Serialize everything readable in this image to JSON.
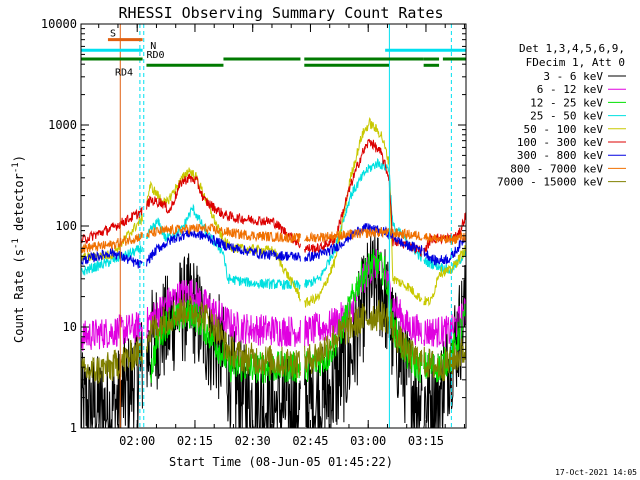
{
  "chart_data": {
    "type": "line",
    "title": "RHESSI Observing Summary Count Rates",
    "xlabel": "Start Time (08-Jun-05 01:45:22)",
    "ylabel": "Count Rate (s⁻¹ detector⁻¹)",
    "ylabel_main": "Count Rate (s",
    "ylabel_sup1": "-1",
    "ylabel_mid": " detector",
    "ylabel_sup2": "-1",
    "ylabel_end": ")",
    "yscale": "log",
    "ylim": [
      1,
      10000
    ],
    "xlim_minutes": [
      0,
      100
    ],
    "x_ticks": [
      {
        "label": "02:00",
        "min": 14.6
      },
      {
        "label": "02:15",
        "min": 29.6
      },
      {
        "label": "02:30",
        "min": 44.6
      },
      {
        "label": "02:45",
        "min": 59.6
      },
      {
        "label": "03:00",
        "min": 74.6
      },
      {
        "label": "03:15",
        "min": 89.6
      }
    ],
    "y_ticks": [
      {
        "label": "1",
        "v": 1
      },
      {
        "label": "10",
        "v": 10
      },
      {
        "label": "100",
        "v": 100
      },
      {
        "label": "1000",
        "v": 1000
      },
      {
        "label": "10000",
        "v": 10000
      }
    ],
    "legend_header": [
      "Det 1,3,4,5,6,9,",
      "FDecim 1, Att 0"
    ],
    "legend_placement": "right",
    "timestamp": "17-Oct-2021 14:05",
    "annotations": {
      "S": {
        "label": "S",
        "start_min": 7,
        "end_min": 16,
        "y": 7000,
        "color": "#e06010"
      },
      "N": {
        "label": "N",
        "start_min": 0,
        "end_min": 19,
        "y": 5500,
        "color": "#00e0f0"
      },
      "RD0": {
        "label": "RD0",
        "color": "#007a00",
        "y": 4500,
        "segments": [
          [
            0,
            16
          ],
          [
            37,
            57
          ],
          [
            58,
            89
          ],
          [
            89,
            93
          ],
          [
            94,
            100
          ]
        ]
      },
      "RD4": {
        "label": "RD4",
        "color": "#007a00",
        "y": 3900,
        "segments": [
          [
            17,
            37
          ],
          [
            58,
            80
          ],
          [
            89,
            93
          ]
        ]
      },
      "cyan_top_bars": [
        [
          0,
          16
        ],
        [
          79,
          100
        ]
      ],
      "vertical_lines": [
        {
          "min": 0,
          "color": "#00e0f0",
          "style": "solid"
        },
        {
          "min": 10.2,
          "color": "#e06010",
          "style": "solid"
        },
        {
          "min": 15.3,
          "color": "#00e0f0",
          "style": "dashed"
        },
        {
          "min": 16.3,
          "color": "#00e0f0",
          "style": "dashed"
        },
        {
          "min": 80.1,
          "color": "#00e0f0",
          "style": "solid"
        },
        {
          "min": 96.2,
          "color": "#00e0f0",
          "style": "dashed"
        }
      ]
    },
    "series": [
      {
        "name": "3 - 6 keV",
        "color": "#000000",
        "points": [
          [
            0,
            1.6
          ],
          [
            8,
            1.5
          ],
          [
            16,
            4
          ],
          [
            19,
            8
          ],
          [
            23,
            10
          ],
          [
            25,
            14
          ],
          [
            29,
            16
          ],
          [
            32,
            9
          ],
          [
            36,
            6
          ],
          [
            39,
            3
          ],
          [
            42,
            2
          ],
          [
            50,
            1.6
          ],
          [
            58,
            1.6
          ],
          [
            64,
            2
          ],
          [
            70,
            5
          ],
          [
            73,
            14
          ],
          [
            75,
            25
          ],
          [
            77,
            27
          ],
          [
            79,
            20
          ],
          [
            81,
            8
          ],
          [
            85,
            3
          ],
          [
            89,
            2
          ],
          [
            93,
            2
          ],
          [
            95,
            4
          ],
          [
            100,
            14
          ]
        ]
      },
      {
        "name": "6 - 12 keV",
        "color": "#e000e0",
        "points": [
          [
            0,
            8
          ],
          [
            8,
            9
          ],
          [
            16,
            10
          ],
          [
            20,
            14
          ],
          [
            23,
            18
          ],
          [
            28,
            23
          ],
          [
            32,
            17
          ],
          [
            37,
            12
          ],
          [
            40,
            10
          ],
          [
            45,
            9.5
          ],
          [
            58,
            9
          ],
          [
            64,
            10
          ],
          [
            70,
            14
          ],
          [
            73,
            28
          ],
          [
            75,
            38
          ],
          [
            77,
            42
          ],
          [
            79,
            35
          ],
          [
            81,
            17
          ],
          [
            85,
            10
          ],
          [
            89,
            9
          ],
          [
            93,
            9
          ],
          [
            96,
            9
          ],
          [
            100,
            14
          ]
        ]
      },
      {
        "name": "12 - 25 keV",
        "color": "#00e000",
        "points": [
          [
            18,
            3.5
          ],
          [
            20,
            8
          ],
          [
            23,
            12
          ],
          [
            25,
            12
          ],
          [
            29,
            14
          ],
          [
            32,
            10
          ],
          [
            36,
            6
          ],
          [
            39,
            4
          ],
          [
            44,
            4
          ],
          [
            56,
            4
          ],
          [
            58,
            4
          ],
          [
            64,
            5
          ],
          [
            68,
            10
          ],
          [
            72,
            28
          ],
          [
            75,
            40
          ],
          [
            77,
            42
          ],
          [
            79,
            35
          ],
          [
            81,
            10
          ],
          [
            85,
            5
          ],
          [
            88,
            4
          ],
          [
            93,
            4
          ],
          [
            96,
            5
          ],
          [
            100,
            13
          ]
        ]
      },
      {
        "name": "25 - 50 keV",
        "color": "#00e0e0",
        "points": [
          [
            0,
            35
          ],
          [
            8,
            45
          ],
          [
            16,
            60
          ],
          [
            18,
            90
          ],
          [
            20,
            110
          ],
          [
            22,
            75
          ],
          [
            26,
            90
          ],
          [
            29,
            150
          ],
          [
            31,
            110
          ],
          [
            33,
            80
          ],
          [
            37,
            55
          ],
          [
            38,
            30
          ],
          [
            45,
            27
          ],
          [
            55,
            26
          ],
          [
            58,
            26
          ],
          [
            62,
            30
          ],
          [
            66,
            60
          ],
          [
            70,
            200
          ],
          [
            74,
            350
          ],
          [
            77,
            420
          ],
          [
            79,
            390
          ],
          [
            80,
            370
          ],
          [
            81,
            100
          ],
          [
            85,
            70
          ],
          [
            89,
            45
          ],
          [
            93,
            40
          ],
          [
            96,
            36
          ],
          [
            100,
            55
          ]
        ]
      },
      {
        "name": "50 - 100 keV",
        "color": "#c8c800",
        "points": [
          [
            0,
            48
          ],
          [
            8,
            52
          ],
          [
            16,
            120
          ],
          [
            18,
            250
          ],
          [
            20,
            200
          ],
          [
            22,
            165
          ],
          [
            25,
            250
          ],
          [
            28,
            360
          ],
          [
            30,
            300
          ],
          [
            32,
            200
          ],
          [
            37,
            70
          ],
          [
            40,
            60
          ],
          [
            50,
            57
          ],
          [
            58,
            17
          ],
          [
            62,
            20
          ],
          [
            66,
            45
          ],
          [
            70,
            300
          ],
          [
            73,
            800
          ],
          [
            75,
            1050
          ],
          [
            78,
            800
          ],
          [
            80,
            430
          ],
          [
            81,
            30
          ],
          [
            85,
            25
          ],
          [
            89,
            18
          ],
          [
            91,
            18
          ],
          [
            93,
            35
          ],
          [
            96,
            36
          ],
          [
            100,
            60
          ]
        ]
      },
      {
        "name": "100 - 300 keV",
        "color": "#dc0000",
        "points": [
          [
            0,
            72
          ],
          [
            8,
            95
          ],
          [
            16,
            140
          ],
          [
            18,
            180
          ],
          [
            21,
            170
          ],
          [
            23,
            140
          ],
          [
            26,
            270
          ],
          [
            28,
            300
          ],
          [
            30,
            280
          ],
          [
            32,
            180
          ],
          [
            37,
            130
          ],
          [
            40,
            120
          ],
          [
            50,
            110
          ],
          [
            58,
            60
          ],
          [
            62,
            60
          ],
          [
            66,
            75
          ],
          [
            70,
            250
          ],
          [
            73,
            520
          ],
          [
            75,
            700
          ],
          [
            78,
            520
          ],
          [
            80,
            300
          ],
          [
            81,
            70
          ],
          [
            85,
            65
          ],
          [
            89,
            55
          ],
          [
            91,
            75
          ],
          [
            95,
            75
          ],
          [
            98,
            80
          ],
          [
            100,
            130
          ]
        ]
      },
      {
        "name": "300 - 800 keV",
        "color": "#0000e0",
        "points": [
          [
            0,
            45
          ],
          [
            8,
            55
          ],
          [
            16,
            40
          ],
          [
            20,
            60
          ],
          [
            24,
            75
          ],
          [
            28,
            85
          ],
          [
            32,
            80
          ],
          [
            37,
            65
          ],
          [
            40,
            60
          ],
          [
            48,
            52
          ],
          [
            56,
            50
          ],
          [
            58,
            48
          ],
          [
            62,
            52
          ],
          [
            66,
            60
          ],
          [
            70,
            80
          ],
          [
            73,
            95
          ],
          [
            75,
            95
          ],
          [
            78,
            88
          ],
          [
            80,
            85
          ],
          [
            84,
            65
          ],
          [
            88,
            60
          ],
          [
            92,
            45
          ],
          [
            96,
            48
          ],
          [
            100,
            80
          ]
        ]
      },
      {
        "name": "800 - 7000 keV",
        "color": "#f07000",
        "points": [
          [
            0,
            60
          ],
          [
            8,
            65
          ],
          [
            16,
            80
          ],
          [
            20,
            88
          ],
          [
            25,
            92
          ],
          [
            30,
            95
          ],
          [
            34,
            93
          ],
          [
            37,
            88
          ],
          [
            42,
            82
          ],
          [
            50,
            78
          ],
          [
            56,
            76
          ],
          [
            58,
            75
          ],
          [
            62,
            78
          ],
          [
            66,
            80
          ],
          [
            70,
            82
          ],
          [
            74,
            85
          ],
          [
            78,
            87
          ],
          [
            80,
            86
          ],
          [
            84,
            83
          ],
          [
            88,
            80
          ],
          [
            92,
            75
          ],
          [
            96,
            72
          ],
          [
            100,
            80
          ]
        ]
      },
      {
        "name": "7000 - 15000 keV",
        "color": "#808000",
        "points": [
          [
            0,
            3.5
          ],
          [
            8,
            4
          ],
          [
            16,
            6
          ],
          [
            18,
            9
          ],
          [
            22,
            12
          ],
          [
            27,
            15
          ],
          [
            31,
            14
          ],
          [
            35,
            10
          ],
          [
            38,
            6
          ],
          [
            42,
            5
          ],
          [
            52,
            4.5
          ],
          [
            58,
            4.5
          ],
          [
            62,
            5.5
          ],
          [
            66,
            8
          ],
          [
            70,
            10
          ],
          [
            73,
            12
          ],
          [
            76,
            13
          ],
          [
            78,
            13
          ],
          [
            80,
            12
          ],
          [
            82,
            8
          ],
          [
            85,
            5.5
          ],
          [
            89,
            4.5
          ],
          [
            93,
            4
          ],
          [
            96,
            4.5
          ],
          [
            100,
            6
          ]
        ]
      }
    ]
  }
}
